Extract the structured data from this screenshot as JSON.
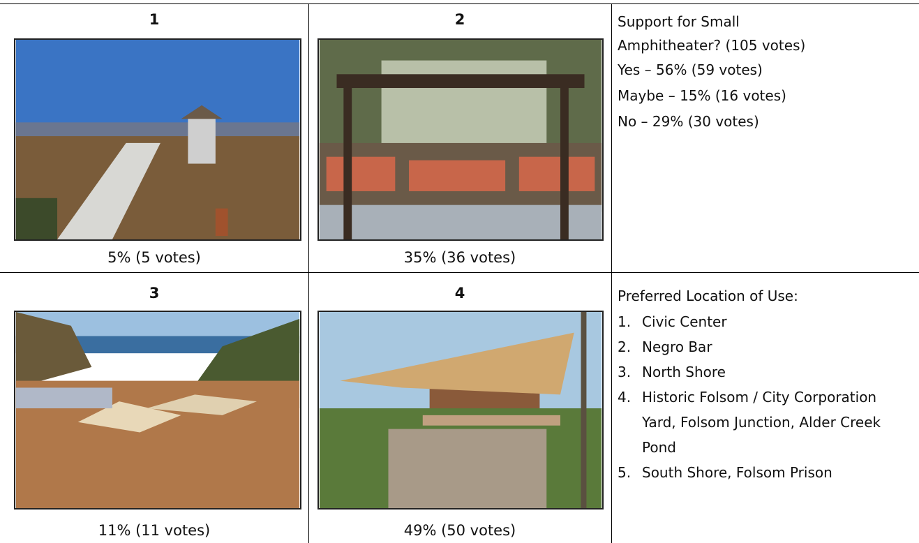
{
  "cells": [
    {
      "label": "1",
      "caption": "5% (5 votes)"
    },
    {
      "label": "2",
      "caption": "35% (36 votes)"
    },
    {
      "label": "3",
      "caption": "11% (11 votes)"
    },
    {
      "label": "4",
      "caption": "49% (50 votes)"
    }
  ],
  "support": {
    "title": "Support for Small Amphitheater? (105 votes)",
    "items": [
      "Yes – 56% (59 votes)",
      "Maybe – 15% (16 votes)",
      "No – 29% (30 votes)"
    ]
  },
  "location": {
    "title": "Preferred Location of Use:",
    "items": [
      {
        "number": "1.",
        "text": "Civic Center"
      },
      {
        "number": "2.",
        "text": "Negro Bar"
      },
      {
        "number": "3.",
        "text": "North Shore"
      },
      {
        "number": "4.",
        "text": "Historic Folsom / City Corporation Yard, Folsom Junction, Alder Creek Pond"
      },
      {
        "number": "5.",
        "text": "South Shore, Folsom Prison"
      }
    ]
  }
}
